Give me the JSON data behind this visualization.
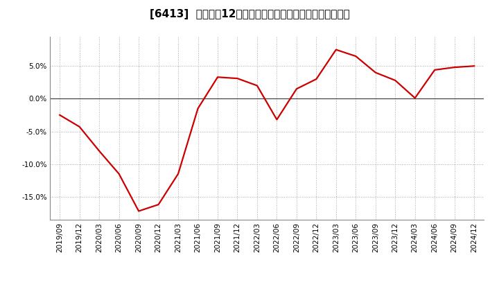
{
  "title": "[6413]  売上高の12か月移動合計の対前年同期増減率の推移",
  "line_color": "#cc0000",
  "background_color": "#ffffff",
  "plot_bg_color": "#ffffff",
  "grid_color": "#aaaaaa",
  "ylim": [
    -0.185,
    0.095
  ],
  "yticks": [
    -0.15,
    -0.1,
    -0.05,
    0.0,
    0.05
  ],
  "ytick_labels": [
    "-15.0%",
    "-10.0%",
    "-5.0%",
    "0.0%",
    "5.0%"
  ],
  "dates": [
    "2019/09",
    "2019/12",
    "2020/03",
    "2020/06",
    "2020/09",
    "2020/12",
    "2021/03",
    "2021/06",
    "2021/09",
    "2021/12",
    "2022/03",
    "2022/06",
    "2022/09",
    "2022/12",
    "2023/03",
    "2023/06",
    "2023/09",
    "2023/12",
    "2024/03",
    "2024/06",
    "2024/09",
    "2024/12"
  ],
  "values": [
    -0.025,
    -0.043,
    -0.08,
    -0.115,
    -0.172,
    -0.162,
    -0.115,
    -0.015,
    0.033,
    0.031,
    0.02,
    -0.032,
    0.015,
    0.03,
    0.075,
    0.065,
    0.04,
    0.028,
    0.001,
    0.044,
    0.048,
    0.05
  ],
  "line_width": 1.6,
  "title_fontsize": 11,
  "tick_fontsize": 7.5
}
